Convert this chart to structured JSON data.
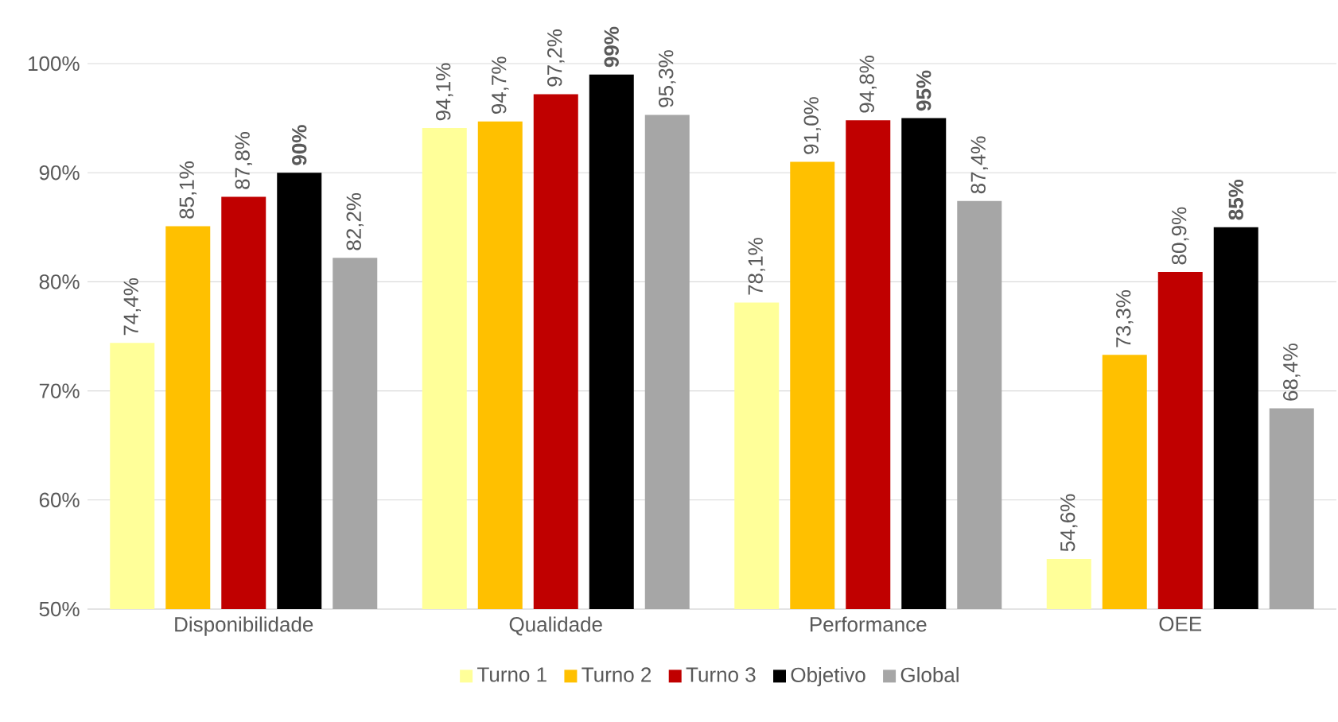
{
  "chart_data": {
    "type": "bar",
    "categories": [
      "Disponibilidade",
      "Qualidade",
      "Performance",
      "OEE"
    ],
    "series": [
      {
        "name": "Turno 1",
        "color": "#ffff99",
        "values": [
          74.4,
          94.1,
          78.1,
          54.6
        ],
        "value_labels": [
          "74,4%",
          "94,1%",
          "78,1%",
          "54,6%"
        ]
      },
      {
        "name": "Turno 2",
        "color": "#ffc000",
        "values": [
          85.1,
          94.7,
          91.0,
          73.3
        ],
        "value_labels": [
          "85,1%",
          "94,7%",
          "91,0%",
          "73,3%"
        ]
      },
      {
        "name": "Turno 3",
        "color": "#c00000",
        "values": [
          87.8,
          97.2,
          94.8,
          80.9
        ],
        "value_labels": [
          "87,8%",
          "97,2%",
          "94,8%",
          "80,9%"
        ]
      },
      {
        "name": "Objetivo",
        "color": "#000000",
        "values": [
          90,
          99,
          95,
          85
        ],
        "value_labels": [
          "**90%**",
          "**99%**",
          "**95%**",
          "**85%**"
        ]
      },
      {
        "name": "Global",
        "color": "#a6a6a6",
        "values": [
          82.2,
          95.3,
          87.4,
          68.4
        ],
        "value_labels": [
          "82,2%",
          "95,3%",
          "87,4%",
          "68,4%"
        ]
      }
    ],
    "ylim": [
      50,
      100
    ],
    "yticks": [
      {
        "value": 50,
        "label": "50%"
      },
      {
        "value": 60,
        "label": "60%"
      },
      {
        "value": 70,
        "label": "70%"
      },
      {
        "value": 80,
        "label": "80%"
      },
      {
        "value": 90,
        "label": "90%"
      },
      {
        "value": 100,
        "label": "100%"
      }
    ],
    "grid": "y",
    "legend": "bottom"
  }
}
